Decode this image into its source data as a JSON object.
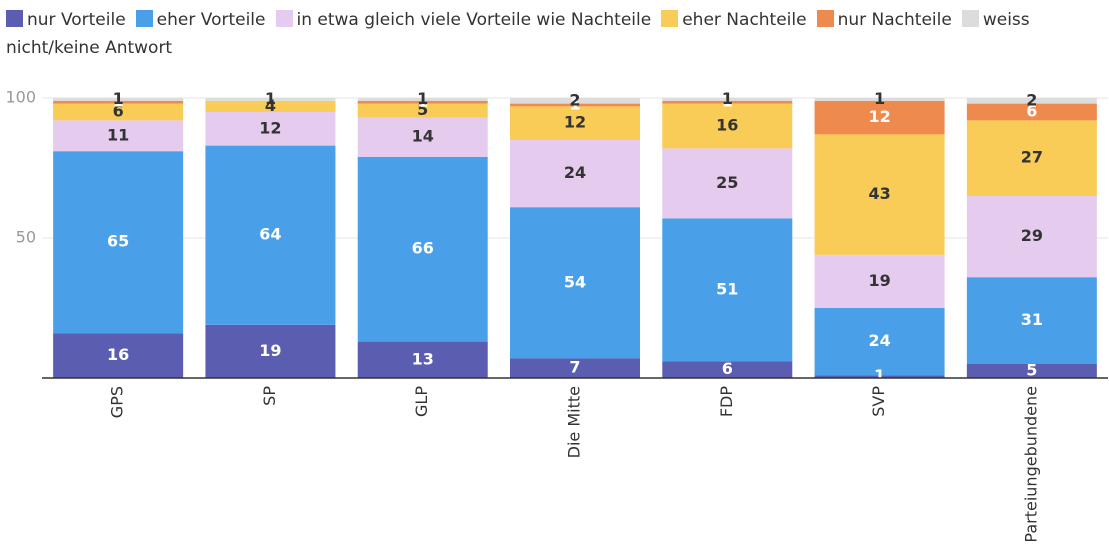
{
  "chart_data": {
    "type": "stacked_bar",
    "categories": [
      "GPS",
      "SP",
      "GLP",
      "Die Mitte",
      "FDP",
      "SVP",
      "Parteiungebundene"
    ],
    "series": [
      {
        "name": "nur Vorteile",
        "color": "#5a5db0",
        "values": [
          16,
          19,
          13,
          7,
          6,
          1,
          5
        ]
      },
      {
        "name": "eher Vorteile",
        "color": "#4aa0e8",
        "values": [
          65,
          64,
          66,
          54,
          51,
          24,
          31
        ]
      },
      {
        "name": "in etwa gleich viele Vorteile wie Nachteile",
        "color": "#e5cbee",
        "values": [
          11,
          12,
          14,
          24,
          25,
          19,
          29
        ]
      },
      {
        "name": "eher Nachteile",
        "color": "#f9cb57",
        "values": [
          6,
          4,
          5,
          12,
          16,
          43,
          27
        ]
      },
      {
        "name": "nur Nachteile",
        "color": "#ef8a4f",
        "values": [
          1,
          0,
          1,
          1,
          1,
          12,
          6
        ]
      },
      {
        "name": "weiss nicht/keine Antwort",
        "color": "#dcdcdc",
        "values": [
          1,
          1,
          1,
          2,
          1,
          1,
          2
        ]
      }
    ],
    "ylim": [
      0,
      100
    ],
    "yticks": [
      50,
      100
    ],
    "grid": true
  }
}
